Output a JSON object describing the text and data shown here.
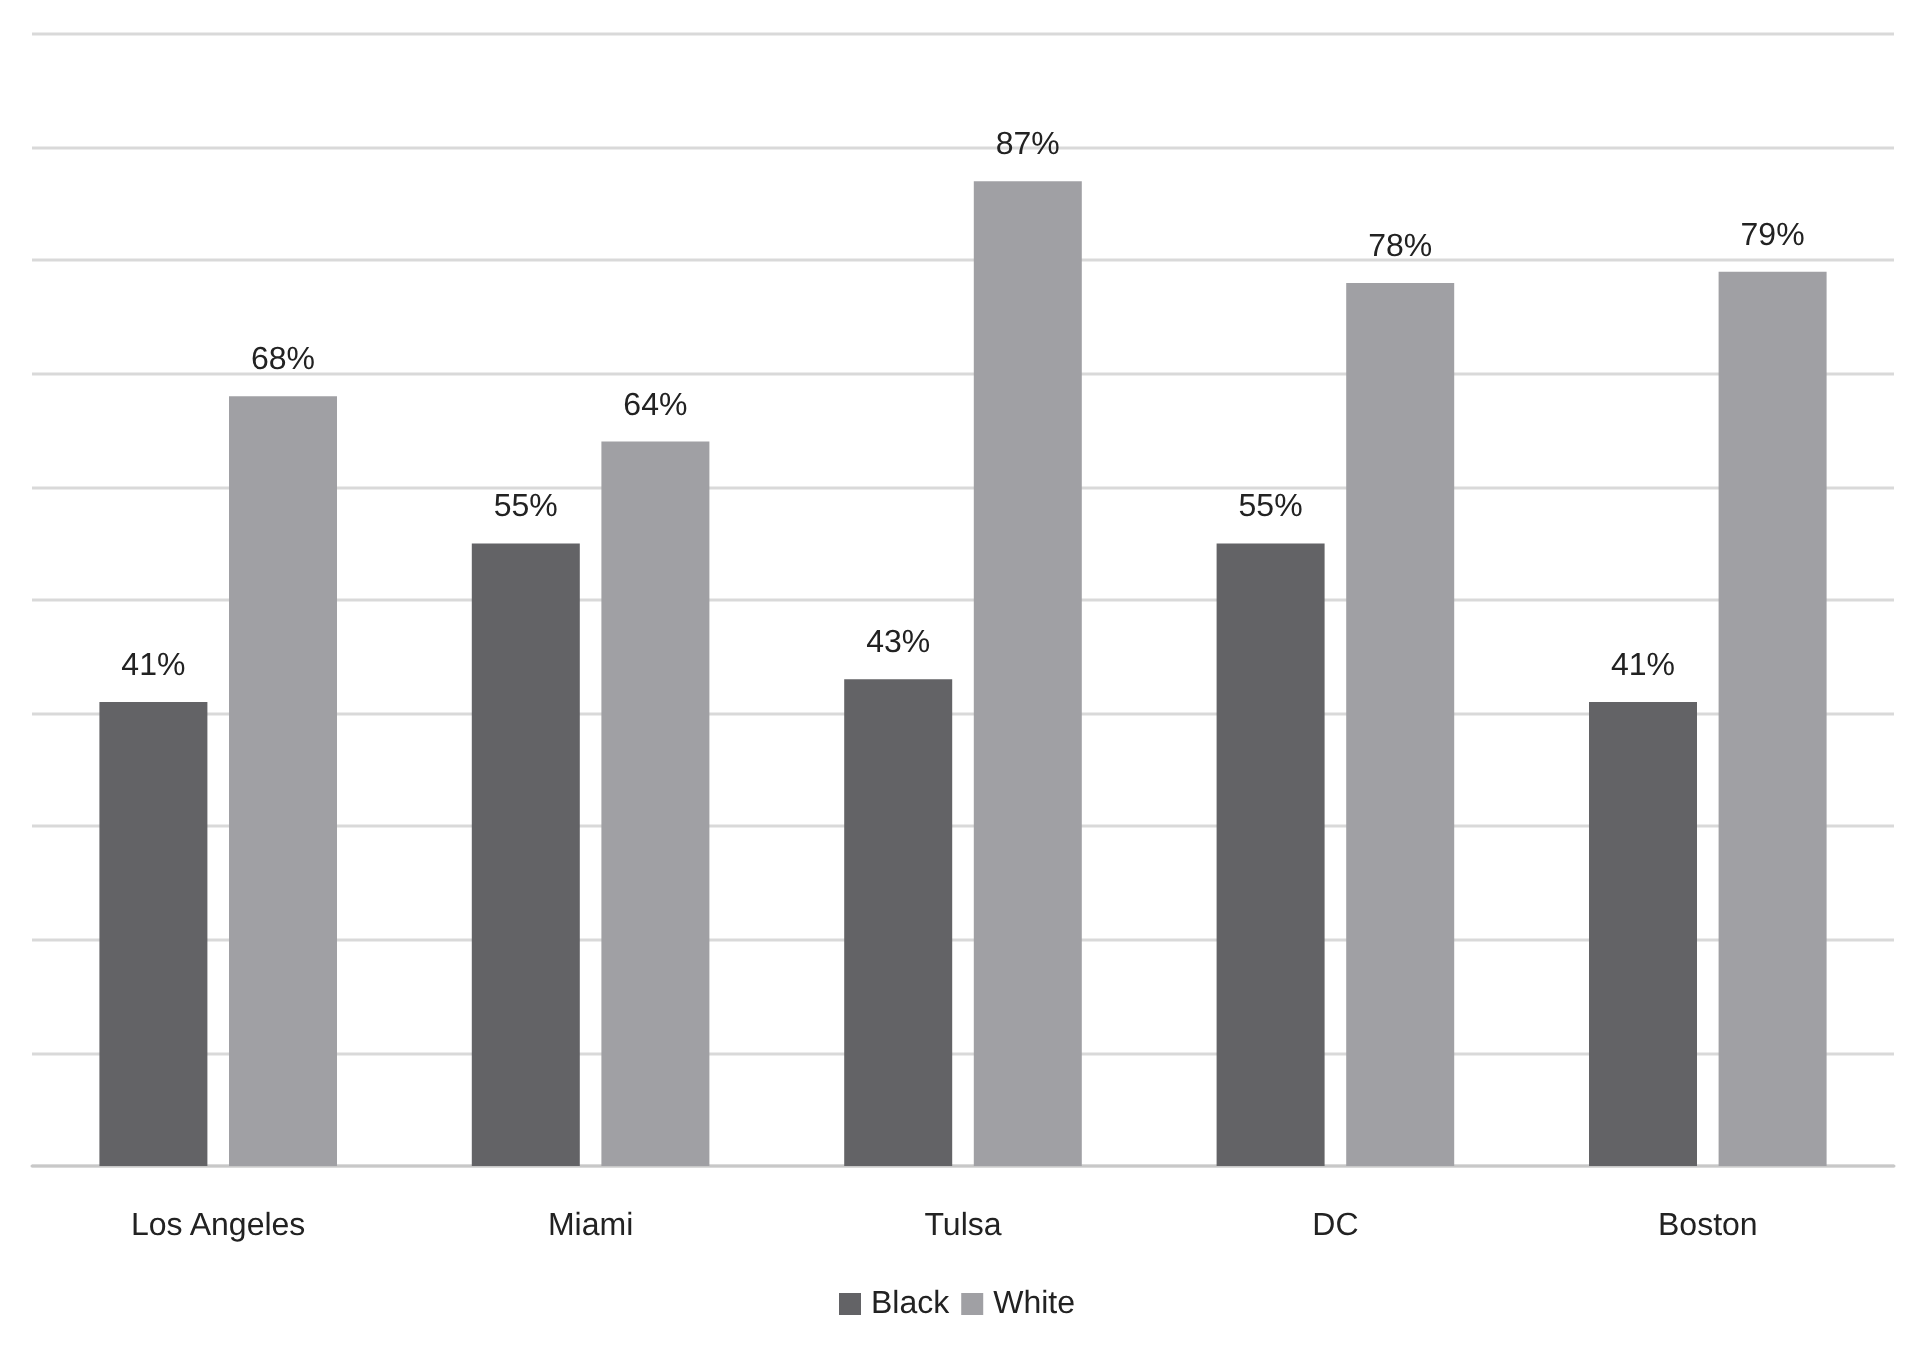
{
  "chart_data": {
    "type": "bar",
    "categories": [
      "Los Angeles",
      "Miami",
      "Tulsa",
      "DC",
      "Boston"
    ],
    "series": [
      {
        "name": "Black",
        "color": "#636366",
        "values": [
          41,
          55,
          43,
          55,
          41
        ],
        "value_labels": [
          "41%",
          "55%",
          "43%",
          "55%",
          "41%"
        ]
      },
      {
        "name": "White",
        "color": "#a0a0a4",
        "values": [
          68,
          64,
          87,
          78,
          79
        ],
        "value_labels": [
          "68%",
          "64%",
          "87%",
          "78%",
          "79%"
        ]
      }
    ],
    "ylim": [
      0,
      100
    ],
    "yticks": [
      {
        "value": 0,
        "label": null
      },
      {
        "value": 10,
        "label": null
      },
      {
        "value": 20,
        "label": null
      },
      {
        "value": 30,
        "label": null
      },
      {
        "value": 40,
        "label": null
      },
      {
        "value": 50,
        "label": null
      },
      {
        "value": 60,
        "label": null
      },
      {
        "value": 70,
        "label": null
      },
      {
        "value": 80,
        "label": null
      },
      {
        "value": 90,
        "label": null
      },
      {
        "value": 100,
        "label": null
      }
    ],
    "tick_labels": "x",
    "grid": "y",
    "legend": "bottom"
  }
}
